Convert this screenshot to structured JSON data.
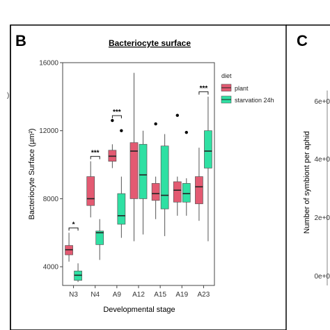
{
  "panels": {
    "left_label": "B",
    "right_label": "C"
  },
  "chart_data": [
    {
      "type": "boxplot",
      "title": "Bacteriocyte surface",
      "xlabel": "Developmental stage",
      "ylabel": "Bacteriocyte Surface (µm²)",
      "ylim": [
        2900,
        16000
      ],
      "yticks": [
        4000,
        8000,
        12000,
        16000
      ],
      "categories": [
        "N3",
        "N4",
        "A9",
        "A12",
        "A15",
        "A19",
        "A23"
      ],
      "legend": {
        "title": "diet",
        "position": "top-right"
      },
      "colors": {
        "plant": "#e35a72",
        "starvation 24h": "#2fe0a3"
      },
      "series": [
        {
          "name": "plant",
          "boxes": [
            {
              "whisker_low": 4300,
              "q1": 4700,
              "median": 5000,
              "q3": 5250,
              "whisker_high": 6000,
              "outliers": []
            },
            {
              "whisker_low": 6900,
              "q1": 7600,
              "median": 8000,
              "q3": 9300,
              "whisker_high": 10200,
              "outliers": []
            },
            {
              "whisker_low": 9800,
              "q1": 10200,
              "median": 10500,
              "q3": 10850,
              "whisker_high": 11200,
              "outliers": [
                12600
              ]
            },
            {
              "whisker_low": 5500,
              "q1": 8000,
              "median": 10800,
              "q3": 11300,
              "whisker_high": 15400,
              "outliers": []
            },
            {
              "whisker_low": 6800,
              "q1": 7900,
              "median": 8300,
              "q3": 8900,
              "whisker_high": 9300,
              "outliers": [
                12400
              ]
            },
            {
              "whisker_low": 7000,
              "q1": 7800,
              "median": 8500,
              "q3": 9000,
              "whisker_high": 9300,
              "outliers": [
                12900
              ]
            },
            {
              "whisker_low": 6700,
              "q1": 7700,
              "median": 8700,
              "q3": 9300,
              "whisker_high": 11000,
              "outliers": []
            }
          ]
        },
        {
          "name": "starvation 24h",
          "boxes": [
            {
              "whisker_low": 3100,
              "q1": 3200,
              "median": 3500,
              "q3": 3750,
              "whisker_high": 4200,
              "outliers": []
            },
            {
              "whisker_low": 4400,
              "q1": 5300,
              "median": 6000,
              "q3": 6100,
              "whisker_high": 6800,
              "outliers": []
            },
            {
              "whisker_low": 5700,
              "q1": 6500,
              "median": 7000,
              "q3": 8300,
              "whisker_high": 9300,
              "outliers": [
                12000
              ]
            },
            {
              "whisker_low": 5900,
              "q1": 8000,
              "median": 9400,
              "q3": 11200,
              "whisker_high": 12000,
              "outliers": []
            },
            {
              "whisker_low": 5800,
              "q1": 7400,
              "median": 8200,
              "q3": 11100,
              "whisker_high": 11800,
              "outliers": []
            },
            {
              "whisker_low": 7000,
              "q1": 7800,
              "median": 8300,
              "q3": 8900,
              "whisker_high": 9200,
              "outliers": [
                11900
              ]
            },
            {
              "whisker_low": 5500,
              "q1": 9800,
              "median": 10800,
              "q3": 12000,
              "whisker_high": 14000,
              "outliers": []
            }
          ]
        }
      ],
      "significance": [
        {
          "category": "N3",
          "label": "*"
        },
        {
          "category": "N4",
          "label": "***"
        },
        {
          "category": "A9",
          "label": "***"
        },
        {
          "category": "A23",
          "label": "***"
        }
      ]
    },
    {
      "type": "partial",
      "ylabel": "Number of symbiont per aphid",
      "yticks": [
        "0e+0",
        "2e+0",
        "4e+0",
        "6e+0"
      ]
    }
  ]
}
